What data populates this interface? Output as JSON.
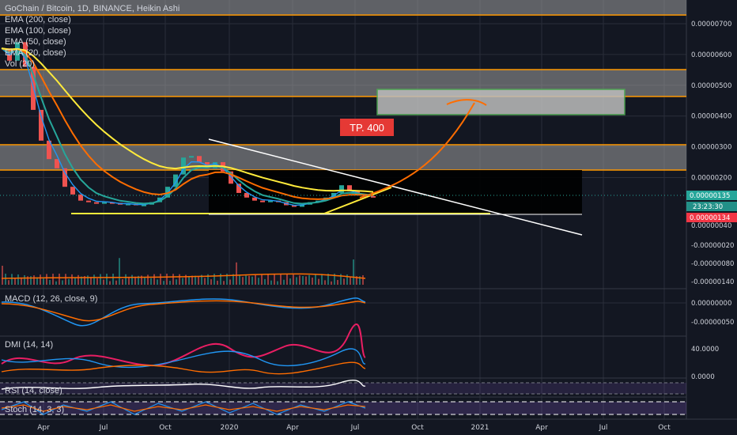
{
  "chart_data": {
    "type": "line",
    "title": "GoChain / Bitcoin, 1D, BINANCE, Heikin Ashi",
    "legend": [
      "EMA (200, close)",
      "EMA (100, close)",
      "EMA (50, close)",
      "EMA (20, close)",
      "Vol (20)"
    ],
    "x_ticks": [
      "Apr",
      "Jul",
      "Oct",
      "2020",
      "Apr",
      "Jul",
      "Oct",
      "2021",
      "Apr",
      "Jul",
      "Oct"
    ],
    "price_axis_ticks": [
      "0.00000700",
      "0.00000600",
      "0.00000500",
      "0.00000400",
      "0.00000300",
      "0.00000200",
      "0.00000135",
      "23:23:30",
      "0.00000134",
      "0.00000040",
      "-0.00000020",
      "-0.00000080",
      "-0.00000140"
    ],
    "macd": {
      "label": "MACD (12, 26, close, 9)",
      "ticks": [
        "0.00000000",
        "-0.00000050"
      ]
    },
    "dmi": {
      "label": "DMI (14, 14)",
      "ticks": [
        "40.0000",
        "0.0000"
      ]
    },
    "rsi": {
      "label": "RSI (14, close)"
    },
    "stoch": {
      "label": "Stoch (14, 3, 3)"
    },
    "annotation": "TP.  400",
    "price_series": {
      "x": [
        0,
        10,
        20,
        30,
        40,
        50,
        60,
        70,
        80,
        90,
        100,
        110,
        120,
        130,
        140,
        150,
        160,
        170,
        180,
        190,
        200,
        210,
        220,
        230,
        240,
        250,
        260,
        270,
        280,
        290,
        300,
        310,
        320,
        330,
        340,
        350,
        360,
        370,
        380,
        390,
        400,
        410,
        420,
        430,
        440,
        450,
        460,
        470
      ],
      "y": [
        6.2,
        5.8,
        6.4,
        5.6,
        4.2,
        3.2,
        2.6,
        2.3,
        1.7,
        1.45,
        1.25,
        1.2,
        1.15,
        1.2,
        1.18,
        1.12,
        1.15,
        1.1,
        1.12,
        1.2,
        1.35,
        1.7,
        2.1,
        2.65,
        2.7,
        2.5,
        2.3,
        2.5,
        2.2,
        1.8,
        1.5,
        1.35,
        1.25,
        1.2,
        1.25,
        1.2,
        1.1,
        1.05,
        1.12,
        1.2,
        1.25,
        1.35,
        1.5,
        1.75,
        1.55,
        1.45,
        1.4,
        1.35
      ]
    },
    "ylim": [
      -1.6,
      7.6
    ]
  },
  "colors": {
    "ema200": "#ffeb3b",
    "ema100": "#ff6d00",
    "ema50": "#26a69a",
    "ema20": "#2196f3",
    "zone": "#9e9e9e",
    "orange_line": "#ff9800",
    "target_box": "#4caf50",
    "tp_label_bg": "#e53935",
    "last_price_bg": "#26a69a",
    "last_price2_bg": "#f23645"
  }
}
